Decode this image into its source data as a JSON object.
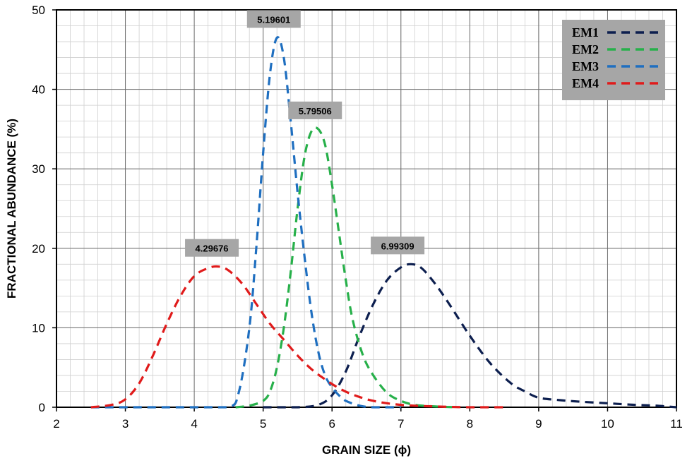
{
  "chart_data": {
    "type": "line",
    "title": "",
    "xlabel": "GRAIN SIZE (ϕ)",
    "ylabel": "FRACTIONAL ABUNDANCE (%)",
    "xlim": [
      2,
      11
    ],
    "ylim": [
      0,
      50
    ],
    "x_ticks": [
      2,
      3,
      4,
      5,
      6,
      7,
      8,
      9,
      10,
      11
    ],
    "y_ticks": [
      0,
      10,
      20,
      30,
      40,
      50
    ],
    "grid": true,
    "minor_grid": true,
    "legend_position": "top-right",
    "series": [
      {
        "name": "EM1",
        "color": "#0d1f4f",
        "x": [
          5.0,
          5.5,
          5.8,
          6.0,
          6.2,
          6.4,
          6.6,
          6.8,
          7.0,
          7.15,
          7.3,
          7.5,
          7.7,
          8.0,
          8.3,
          8.6,
          8.8,
          9.0,
          9.3,
          9.6,
          10.0,
          10.4,
          10.7,
          11.0
        ],
        "y": [
          0.0,
          0.0,
          0.3,
          1.5,
          4.5,
          9.0,
          13.0,
          16.0,
          17.6,
          18.0,
          17.5,
          15.5,
          13.0,
          9.0,
          5.5,
          3.0,
          2.0,
          1.2,
          0.9,
          0.7,
          0.5,
          0.3,
          0.2,
          0.0
        ]
      },
      {
        "name": "EM2",
        "color": "#27b04a",
        "x": [
          4.6,
          4.8,
          5.0,
          5.1,
          5.2,
          5.3,
          5.4,
          5.5,
          5.6,
          5.7,
          5.8,
          5.9,
          6.0,
          6.1,
          6.2,
          6.3,
          6.45,
          6.6,
          6.8,
          7.0,
          7.2,
          7.5,
          7.8
        ],
        "y": [
          0.0,
          0.2,
          0.8,
          2.0,
          5.0,
          10.0,
          17.0,
          25.0,
          31.5,
          34.7,
          35.0,
          33.0,
          28.0,
          22.0,
          16.0,
          11.0,
          6.5,
          4.0,
          1.8,
          0.8,
          0.3,
          0.1,
          0.0
        ]
      },
      {
        "name": "EM3",
        "color": "#1f6fc0",
        "x": [
          2.5,
          3.0,
          4.0,
          4.5,
          4.65,
          4.8,
          4.9,
          5.0,
          5.1,
          5.2,
          5.3,
          5.4,
          5.5,
          5.6,
          5.7,
          5.8,
          5.9,
          6.0,
          6.1,
          6.2,
          6.4,
          6.6,
          7.0
        ],
        "y": [
          0.0,
          0.0,
          0.0,
          0.0,
          2.0,
          10.0,
          20.0,
          32.0,
          42.0,
          46.5,
          44.0,
          36.0,
          27.0,
          19.0,
          12.0,
          7.0,
          4.0,
          2.5,
          1.5,
          0.8,
          0.2,
          0.0,
          0.0
        ]
      },
      {
        "name": "EM4",
        "color": "#e01b1b",
        "x": [
          2.5,
          2.8,
          3.0,
          3.2,
          3.4,
          3.6,
          3.8,
          4.0,
          4.2,
          4.35,
          4.5,
          4.7,
          4.9,
          5.1,
          5.3,
          5.5,
          5.7,
          5.9,
          6.1,
          6.3,
          6.6,
          7.0,
          7.5,
          8.0,
          8.5
        ],
        "y": [
          0.0,
          0.3,
          1.0,
          3.0,
          6.5,
          10.5,
          14.0,
          16.5,
          17.5,
          17.7,
          17.2,
          15.5,
          13.0,
          10.5,
          8.5,
          6.5,
          4.8,
          3.5,
          2.4,
          1.6,
          0.8,
          0.3,
          0.1,
          0.0,
          0.0
        ]
      }
    ],
    "annotations": [
      {
        "text": "5.19601",
        "x": 5.19601,
        "y": 46.5
      },
      {
        "text": "5.79506",
        "x": 5.79506,
        "y": 35.0
      },
      {
        "text": "4.29676",
        "x": 4.29676,
        "y": 17.7
      },
      {
        "text": "6.99309",
        "x": 6.99309,
        "y": 18.0
      }
    ]
  }
}
